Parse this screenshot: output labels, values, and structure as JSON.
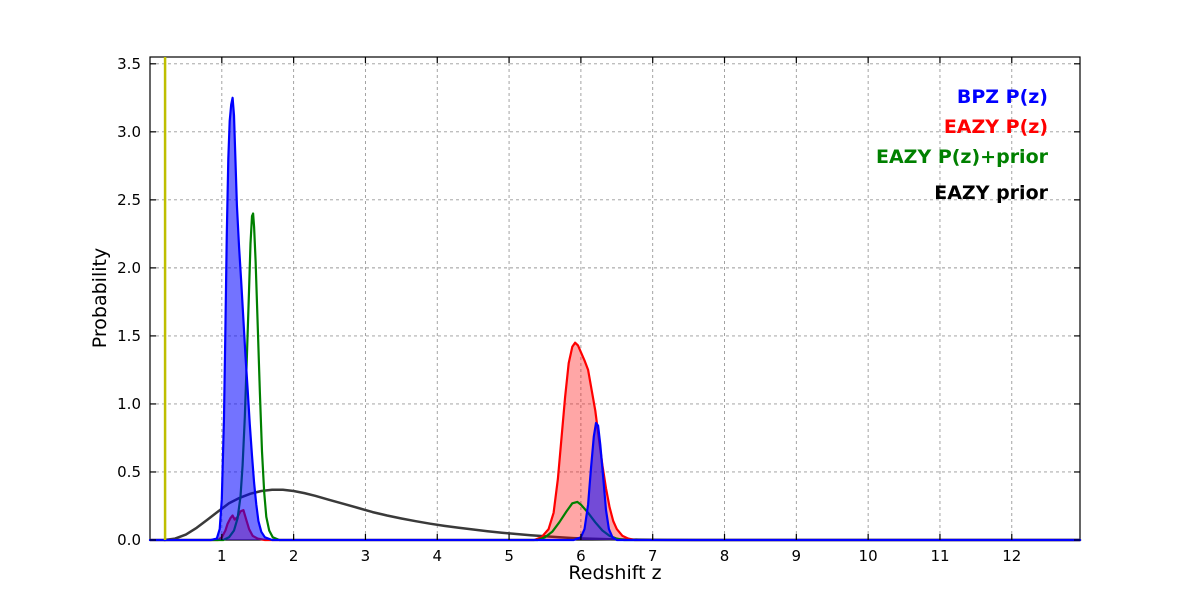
{
  "figure": {
    "background": "#ffffff",
    "grid_color": "#999999",
    "frame_color": "#000000",
    "tick_label_color": "#000000"
  },
  "legend": {
    "items": [
      {
        "label": "BPZ P(z)",
        "color": "#0000ff"
      },
      {
        "label": "EAZY P(z)",
        "color": "#ff0000"
      },
      {
        "label": "EAZY P(z)+prior",
        "color": "#008000"
      },
      {
        "label": "EAZY prior",
        "color": "#000000"
      }
    ]
  },
  "chart_data": {
    "type": "line",
    "title": "",
    "xlabel": "Redshift z",
    "ylabel": "Probability",
    "xlim": [
      0,
      12.95
    ],
    "ylim": [
      0,
      3.55
    ],
    "grid": true,
    "legend_position": "upper right (text only, right-aligned)",
    "xticks": [
      1,
      2,
      3,
      4,
      5,
      6,
      7,
      8,
      9,
      10,
      11,
      12
    ],
    "xtick_labels": [
      "1",
      "2",
      "3",
      "4",
      "5",
      "6",
      "7",
      "8",
      "9",
      "10",
      "11",
      "12"
    ],
    "yticks": [
      0.0,
      0.5,
      1.0,
      1.5,
      2.0,
      2.5,
      3.0,
      3.5
    ],
    "ytick_labels": [
      "0.0",
      "0.5",
      "1.0",
      "1.5",
      "2.0",
      "2.5",
      "3.0",
      "3.5"
    ],
    "vline": {
      "x": 0.21,
      "color": "#bfbf00",
      "line_width": 2.5
    },
    "series": [
      {
        "id": "eazy-prior",
        "name": "EAZY prior",
        "color": "#3a3a3a",
        "line_width": 2.5,
        "fill": false,
        "points": [
          [
            0.2,
            0
          ],
          [
            0.35,
            0.01
          ],
          [
            0.5,
            0.04
          ],
          [
            0.65,
            0.09
          ],
          [
            0.8,
            0.15
          ],
          [
            0.95,
            0.21
          ],
          [
            1.1,
            0.27
          ],
          [
            1.25,
            0.31
          ],
          [
            1.4,
            0.34
          ],
          [
            1.55,
            0.36
          ],
          [
            1.7,
            0.37
          ],
          [
            1.85,
            0.37
          ],
          [
            2.0,
            0.36
          ],
          [
            2.15,
            0.345
          ],
          [
            2.3,
            0.325
          ],
          [
            2.5,
            0.295
          ],
          [
            2.7,
            0.265
          ],
          [
            2.9,
            0.235
          ],
          [
            3.1,
            0.205
          ],
          [
            3.3,
            0.18
          ],
          [
            3.5,
            0.158
          ],
          [
            3.7,
            0.138
          ],
          [
            3.9,
            0.12
          ],
          [
            4.1,
            0.104
          ],
          [
            4.3,
            0.09
          ],
          [
            4.5,
            0.077
          ],
          [
            4.7,
            0.065
          ],
          [
            4.9,
            0.054
          ],
          [
            5.1,
            0.044
          ],
          [
            5.3,
            0.035
          ],
          [
            5.5,
            0.027
          ],
          [
            5.7,
            0.02
          ],
          [
            5.9,
            0.014
          ],
          [
            6.1,
            0.01
          ],
          [
            6.4,
            0.006
          ],
          [
            6.8,
            0.003
          ],
          [
            7.2,
            0.001
          ],
          [
            7.6,
            0
          ],
          [
            12.95,
            0
          ]
        ]
      },
      {
        "id": "eazy-pz",
        "name": "EAZY P(z)",
        "color": "#ff0000",
        "line_width": 2.2,
        "fill": true,
        "fill_color": "rgba(255,0,0,0.35)",
        "points": [
          [
            0.0,
            0
          ],
          [
            0.95,
            0
          ],
          [
            1.0,
            0.02
          ],
          [
            1.05,
            0.07
          ],
          [
            1.08,
            0.12
          ],
          [
            1.12,
            0.16
          ],
          [
            1.15,
            0.18
          ],
          [
            1.18,
            0.15
          ],
          [
            1.22,
            0.17
          ],
          [
            1.26,
            0.21
          ],
          [
            1.3,
            0.22
          ],
          [
            1.34,
            0.15
          ],
          [
            1.38,
            0.08
          ],
          [
            1.43,
            0.03
          ],
          [
            1.5,
            0.01
          ],
          [
            1.6,
            0
          ],
          [
            5.35,
            0
          ],
          [
            5.45,
            0.02
          ],
          [
            5.55,
            0.08
          ],
          [
            5.62,
            0.2
          ],
          [
            5.68,
            0.45
          ],
          [
            5.73,
            0.75
          ],
          [
            5.78,
            1.05
          ],
          [
            5.83,
            1.3
          ],
          [
            5.88,
            1.42
          ],
          [
            5.92,
            1.45
          ],
          [
            5.96,
            1.43
          ],
          [
            6.0,
            1.38
          ],
          [
            6.05,
            1.32
          ],
          [
            6.1,
            1.25
          ],
          [
            6.15,
            1.1
          ],
          [
            6.2,
            0.95
          ],
          [
            6.25,
            0.75
          ],
          [
            6.3,
            0.55
          ],
          [
            6.35,
            0.38
          ],
          [
            6.4,
            0.24
          ],
          [
            6.45,
            0.14
          ],
          [
            6.5,
            0.08
          ],
          [
            6.58,
            0.03
          ],
          [
            6.66,
            0.01
          ],
          [
            6.75,
            0
          ],
          [
            12.95,
            0
          ]
        ]
      },
      {
        "id": "eazy-pz-prior",
        "name": "EAZY P(z)+prior",
        "color": "#008000",
        "line_width": 2.2,
        "fill": false,
        "points": [
          [
            0.0,
            0
          ],
          [
            1.02,
            0
          ],
          [
            1.1,
            0.02
          ],
          [
            1.17,
            0.07
          ],
          [
            1.22,
            0.16
          ],
          [
            1.26,
            0.32
          ],
          [
            1.29,
            0.55
          ],
          [
            1.32,
            0.9
          ],
          [
            1.35,
            1.35
          ],
          [
            1.38,
            1.85
          ],
          [
            1.4,
            2.18
          ],
          [
            1.42,
            2.38
          ],
          [
            1.435,
            2.4
          ],
          [
            1.45,
            2.3
          ],
          [
            1.47,
            2.05
          ],
          [
            1.5,
            1.58
          ],
          [
            1.53,
            1.08
          ],
          [
            1.56,
            0.65
          ],
          [
            1.59,
            0.35
          ],
          [
            1.62,
            0.17
          ],
          [
            1.66,
            0.07
          ],
          [
            1.71,
            0.02
          ],
          [
            1.8,
            0
          ],
          [
            5.4,
            0
          ],
          [
            5.5,
            0.02
          ],
          [
            5.6,
            0.06
          ],
          [
            5.7,
            0.13
          ],
          [
            5.8,
            0.21
          ],
          [
            5.88,
            0.27
          ],
          [
            5.95,
            0.28
          ],
          [
            6.0,
            0.26
          ],
          [
            6.1,
            0.2
          ],
          [
            6.2,
            0.13
          ],
          [
            6.3,
            0.07
          ],
          [
            6.4,
            0.03
          ],
          [
            6.5,
            0.01
          ],
          [
            6.6,
            0
          ],
          [
            12.95,
            0
          ]
        ]
      },
      {
        "id": "bpz-pz",
        "name": "BPZ P(z)",
        "color": "#0000ff",
        "line_width": 2.2,
        "fill": true,
        "fill_color": "rgba(0,0,255,0.55)",
        "points": [
          [
            0.0,
            0
          ],
          [
            0.85,
            0
          ],
          [
            0.93,
            0.01
          ],
          [
            0.97,
            0.08
          ],
          [
            1.0,
            0.3
          ],
          [
            1.03,
            0.9
          ],
          [
            1.05,
            1.55
          ],
          [
            1.07,
            2.25
          ],
          [
            1.09,
            2.8
          ],
          [
            1.11,
            3.08
          ],
          [
            1.13,
            3.2
          ],
          [
            1.15,
            3.25
          ],
          [
            1.17,
            3.12
          ],
          [
            1.19,
            2.78
          ],
          [
            1.21,
            2.46
          ],
          [
            1.24,
            2.15
          ],
          [
            1.27,
            1.9
          ],
          [
            1.3,
            1.62
          ],
          [
            1.33,
            1.35
          ],
          [
            1.36,
            1.1
          ],
          [
            1.39,
            0.85
          ],
          [
            1.42,
            0.62
          ],
          [
            1.45,
            0.42
          ],
          [
            1.48,
            0.26
          ],
          [
            1.51,
            0.14
          ],
          [
            1.55,
            0.06
          ],
          [
            1.6,
            0.02
          ],
          [
            1.7,
            0
          ],
          [
            5.9,
            0
          ],
          [
            6.0,
            0.02
          ],
          [
            6.05,
            0.08
          ],
          [
            6.1,
            0.26
          ],
          [
            6.14,
            0.52
          ],
          [
            6.18,
            0.76
          ],
          [
            6.21,
            0.86
          ],
          [
            6.24,
            0.84
          ],
          [
            6.27,
            0.7
          ],
          [
            6.31,
            0.46
          ],
          [
            6.35,
            0.22
          ],
          [
            6.39,
            0.08
          ],
          [
            6.44,
            0.02
          ],
          [
            6.5,
            0
          ],
          [
            12.95,
            0
          ]
        ]
      }
    ]
  }
}
